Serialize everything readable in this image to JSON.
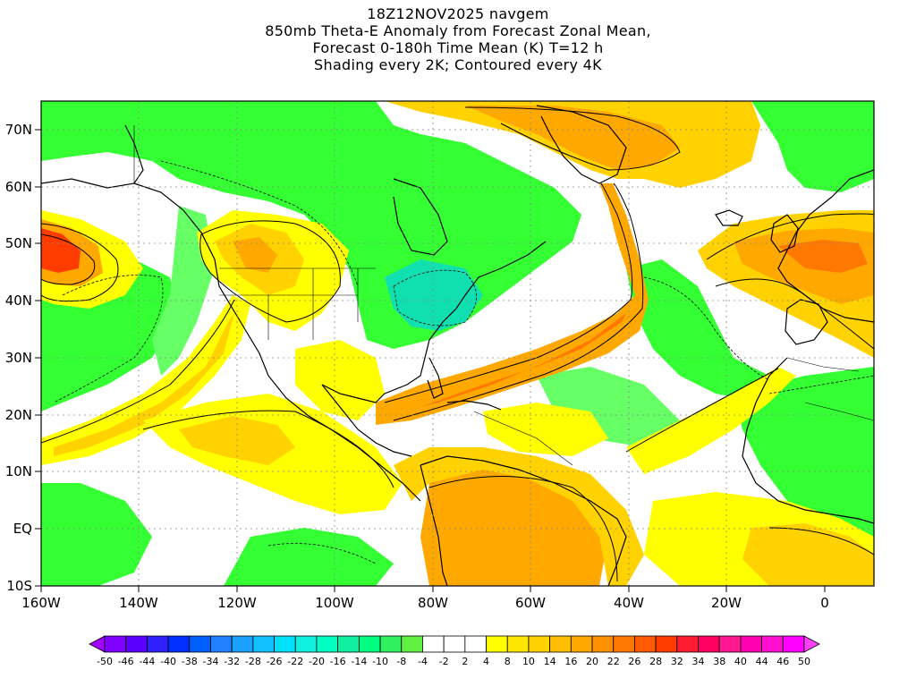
{
  "title": {
    "line1": "18Z12NOV2025 navgem",
    "line2": "850mb Theta-E Anomaly from Forecast Zonal Mean,",
    "line3": "Forecast 0-180h Time Mean (K) T=12 h",
    "line4": "Shading every 2K; Contoured every 4K"
  },
  "axes": {
    "lon_labels": [
      "160W",
      "140W",
      "120W",
      "100W",
      "80W",
      "60W",
      "40W",
      "20W",
      "0"
    ],
    "lat_labels": [
      "10S",
      "EQ",
      "10N",
      "20N",
      "30N",
      "40N",
      "50N",
      "60N",
      "70N"
    ]
  },
  "colorbar": {
    "labels": [
      "-50",
      "-46",
      "-44",
      "-40",
      "-38",
      "-34",
      "-32",
      "-28",
      "-26",
      "-22",
      "-20",
      "-16",
      "-14",
      "-10",
      "-8",
      "-4",
      "-2",
      "2",
      "4",
      "8",
      "10",
      "14",
      "16",
      "20",
      "22",
      "26",
      "28",
      "32",
      "34",
      "38",
      "40",
      "44",
      "46",
      "50"
    ],
    "colors": [
      "#a000ff",
      "#8000ff",
      "#5a00ff",
      "#3020ff",
      "#0030ff",
      "#0060ff",
      "#2080ff",
      "#1aa0ff",
      "#10c0ff",
      "#00e0ff",
      "#10f0e0",
      "#00ffc0",
      "#10f0a0",
      "#00ff80",
      "#30f060",
      "#60f040",
      "#ffffff",
      "#ffffff",
      "#ffffff",
      "#ffff00",
      "#ffe600",
      "#ffd200",
      "#ffbe00",
      "#ffa800",
      "#ff9000",
      "#ff7800",
      "#ff5a00",
      "#ff3c00",
      "#ff1c30",
      "#ff0060",
      "#ff1890",
      "#ff00b0",
      "#ff10d0",
      "#ff00ff",
      "#ff40ff"
    ]
  },
  "map_colors": {
    "green": "#33ff33",
    "light_green": "#66ff66",
    "teal": "#00f0b0",
    "cyan": "#10e0e0",
    "yellow": "#ffff00",
    "gold": "#ffd200",
    "orange": "#ffa800",
    "dark_orange": "#ff7800",
    "red": "#ff3c00"
  }
}
